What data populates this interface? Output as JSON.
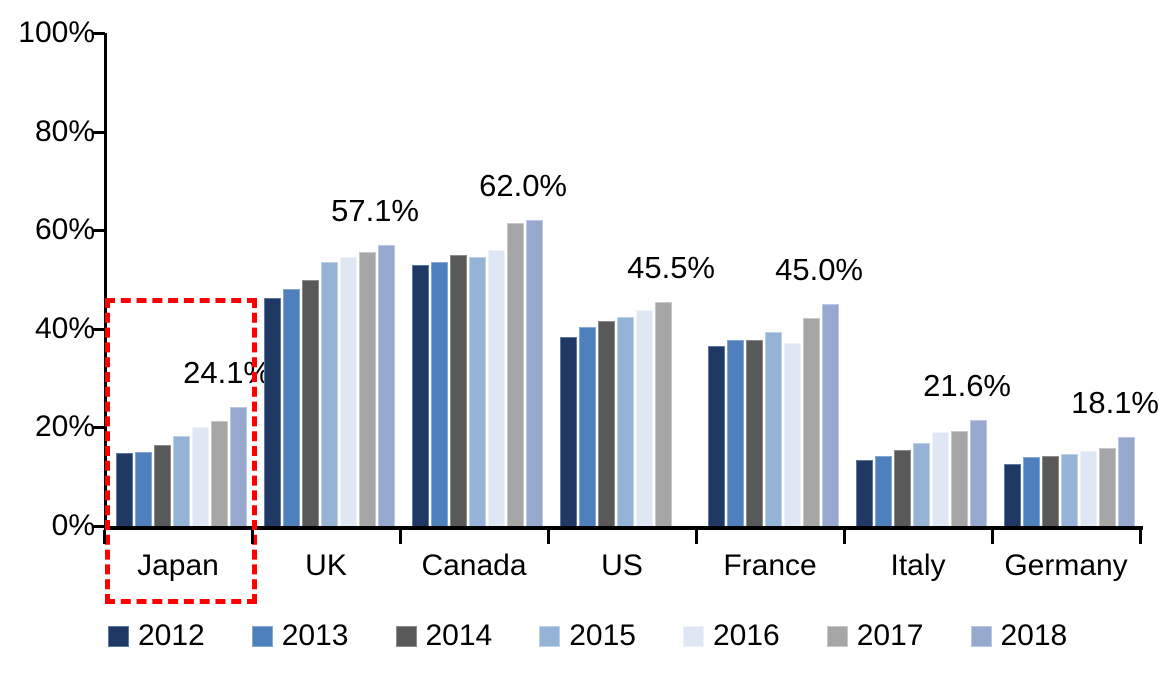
{
  "chart_data": {
    "type": "bar",
    "title": "",
    "unit": "percent",
    "categories": [
      "Japan",
      "UK",
      "Canada",
      "US",
      "France",
      "Italy",
      "Germany"
    ],
    "series": [
      {
        "name": "2012",
        "color": "#1F3864",
        "border_color": "#5B77A3",
        "values": [
          14.8,
          46.3,
          53.0,
          38.3,
          36.5,
          13.3,
          12.6
        ]
      },
      {
        "name": "2013",
        "color": "#4E80BD",
        "border_color": "#84A8D3",
        "values": [
          15.0,
          48.0,
          53.5,
          40.3,
          37.8,
          14.2,
          14.0
        ]
      },
      {
        "name": "2014",
        "color": "#595959",
        "border_color": "#8C8C8C",
        "values": [
          16.5,
          50.0,
          55.0,
          41.5,
          37.7,
          15.4,
          14.3
        ]
      },
      {
        "name": "2015",
        "color": "#95B3D7",
        "border_color": "#BFD1E7",
        "values": [
          18.2,
          53.5,
          54.6,
          42.5,
          39.3,
          16.8,
          14.7
        ]
      },
      {
        "name": "2016",
        "color": "#DEE7F3",
        "border_color": "#EFF4FA",
        "values": [
          20.1,
          54.5,
          56.0,
          43.8,
          37.2,
          19.0,
          15.2
        ]
      },
      {
        "name": "2017",
        "color": "#A6A6A6",
        "border_color": "#C8C8C8",
        "values": [
          21.3,
          55.6,
          61.5,
          45.5,
          42.3,
          19.2,
          15.8
        ]
      },
      {
        "name": "2018",
        "color": "#97A9CE",
        "border_color": "#BCC8E1",
        "values": [
          24.1,
          57.1,
          62.0,
          null,
          45.0,
          21.6,
          18.1
        ]
      }
    ],
    "data_labels": [
      "24.1%",
      "57.1%",
      "62.0%",
      "45.5%",
      "45.0%",
      "21.6%",
      "18.1%"
    ],
    "y_axis": {
      "ticks": [
        "100%",
        "80%",
        "60%",
        "40%",
        "20%",
        "0%"
      ],
      "min": 0,
      "max": 100,
      "grid": false
    },
    "x_axis": {
      "tick_marks_between_groups": true
    },
    "legend": {
      "position": "bottom",
      "entries": [
        "2012",
        "2013",
        "2014",
        "2015",
        "2016",
        "2017",
        "2018"
      ]
    },
    "annotation": {
      "shape": "dashed-rectangle",
      "color": "#FF0000",
      "highlighted_category": "Japan"
    }
  },
  "colors": {
    "axis": "#000000",
    "background": "#FFFFFF",
    "text": "#000000",
    "highlight": "#FF0000"
  }
}
